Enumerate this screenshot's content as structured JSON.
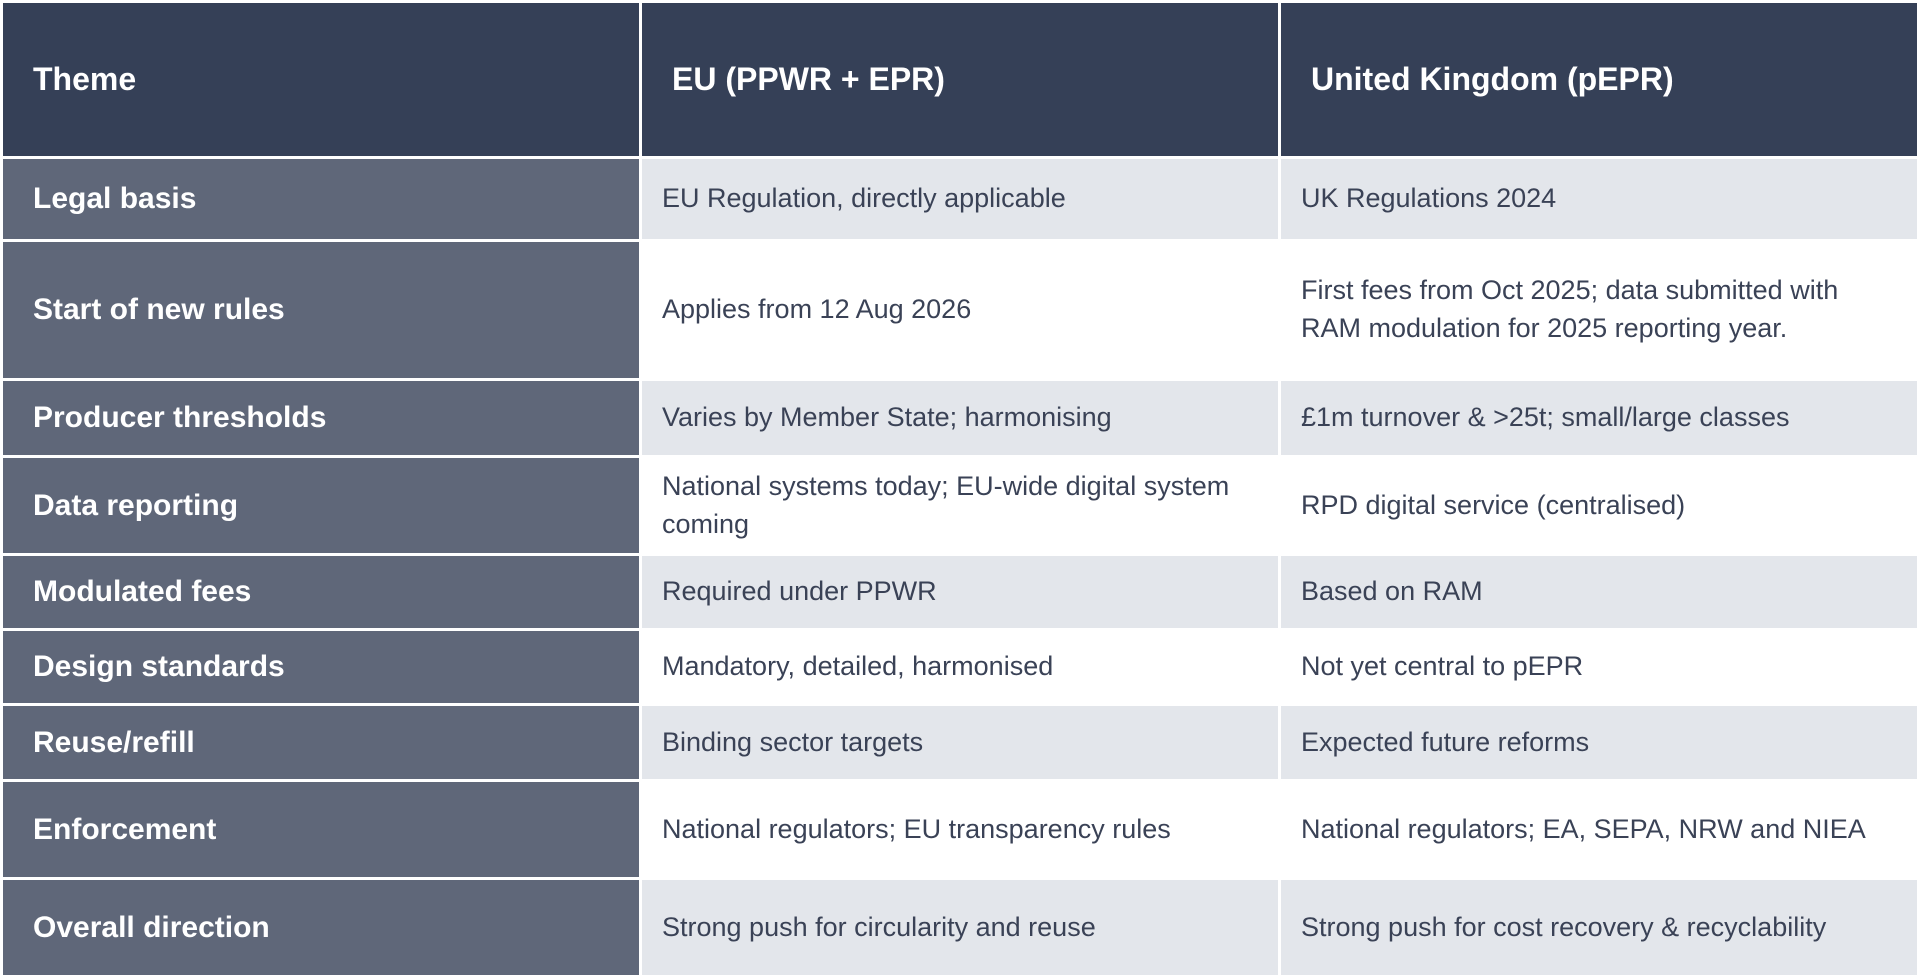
{
  "header": {
    "columns": [
      "Theme",
      "EU (PPWR + EPR)",
      "United Kingdom (pEPR)"
    ]
  },
  "table": {
    "rows": [
      [
        "Legal basis",
        "EU Regulation, directly applicable",
        "UK Regulations 2024"
      ],
      [
        "Start of new rules",
        "Applies from 12 Aug 2026",
        "First fees from Oct 2025; data submitted with RAM modulation for 2025 reporting year."
      ],
      [
        "Producer thresholds",
        "Varies by Member State; harmonising",
        "£1m turnover & >25t; small/large classes"
      ],
      [
        "Data reporting",
        "National systems today; EU-wide digital system coming",
        "RPD digital service (centralised)"
      ],
      [
        "Modulated fees",
        "Required under PPWR",
        "Based on RAM"
      ],
      [
        "Design standards",
        "Mandatory, detailed, harmonised",
        "Not yet central to pEPR"
      ],
      [
        "Reuse/refill",
        "Binding sector targets",
        "Expected future reforms"
      ],
      [
        "Enforcement",
        "National regulators; EU transparency rules",
        "National regulators; EA, SEPA, NRW and NIEA"
      ],
      [
        "Overall direction",
        "Strong push for circularity and reuse",
        "Strong push for cost recovery & recyclability"
      ]
    ]
  }
}
